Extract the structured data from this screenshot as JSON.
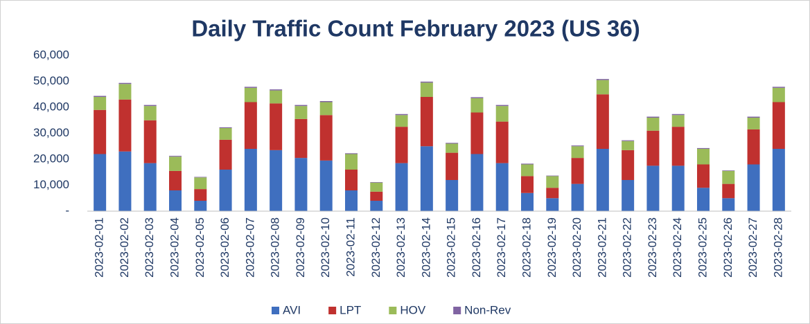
{
  "chart_data": {
    "type": "stacked-bar",
    "title": "Daily Traffic Count February 2023 (US 36)",
    "categories": [
      "2023-02-01",
      "2023-02-02",
      "2023-02-03",
      "2023-02-04",
      "2023-02-05",
      "2023-02-06",
      "2023-02-07",
      "2023-02-08",
      "2023-02-09",
      "2023-02-10",
      "2023-02-11",
      "2023-02-12",
      "2023-02-13",
      "2023-02-14",
      "2023-02-15",
      "2023-02-16",
      "2023-02-17",
      "2023-02-18",
      "2023-02-19",
      "2023-02-20",
      "2023-02-21",
      "2023-02-22",
      "2023-02-23",
      "2023-02-24",
      "2023-02-25",
      "2023-02-26",
      "2023-02-27",
      "2023-02-28"
    ],
    "series": [
      {
        "name": "AVI",
        "color": "#3f6fbf",
        "values": [
          22000,
          23000,
          18500,
          8000,
          4000,
          16000,
          24000,
          23500,
          20500,
          19500,
          8000,
          4000,
          18500,
          25000,
          12000,
          22000,
          18500,
          7000,
          5000,
          10500,
          24000,
          12000,
          17500,
          17500,
          9000,
          5000,
          18000,
          24000
        ]
      },
      {
        "name": "LPT",
        "color": "#c0312f",
        "values": [
          17000,
          20000,
          16500,
          7500,
          4500,
          11500,
          18000,
          18000,
          15000,
          17500,
          8000,
          3500,
          14000,
          19000,
          10500,
          16000,
          16000,
          6500,
          4000,
          10000,
          21000,
          11500,
          13500,
          15000,
          9000,
          5500,
          13500,
          18000
        ]
      },
      {
        "name": "HOV",
        "color": "#9bbb59",
        "values": [
          5000,
          6000,
          5500,
          5500,
          4500,
          4500,
          5500,
          5000,
          5000,
          5000,
          6000,
          3500,
          4500,
          5500,
          3500,
          5500,
          6000,
          4500,
          4500,
          4500,
          5500,
          3500,
          5000,
          4500,
          6000,
          5000,
          4500,
          5500
        ]
      },
      {
        "name": "Non-Rev",
        "color": "#8064a2",
        "values": [
          400,
          400,
          400,
          300,
          200,
          300,
          400,
          400,
          400,
          400,
          300,
          200,
          400,
          400,
          300,
          400,
          400,
          300,
          200,
          300,
          400,
          300,
          400,
          400,
          300,
          200,
          400,
          400
        ]
      }
    ],
    "ylim": [
      0,
      60000
    ],
    "yticks": [
      {
        "value": 0,
        "label": "-"
      },
      {
        "value": 10000,
        "label": "10,000"
      },
      {
        "value": 20000,
        "label": "20,000"
      },
      {
        "value": 30000,
        "label": "30,000"
      },
      {
        "value": 40000,
        "label": "40,000"
      },
      {
        "value": 50000,
        "label": "50,000"
      },
      {
        "value": 60000,
        "label": "60,000"
      }
    ],
    "grid": false,
    "legend": "bottom"
  }
}
